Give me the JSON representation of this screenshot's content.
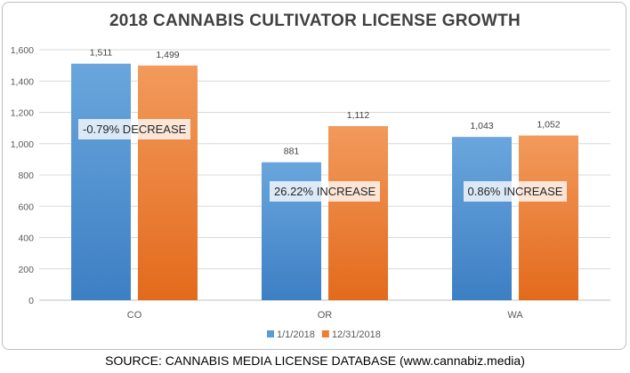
{
  "chart_data": {
    "type": "bar",
    "title": "2018 CANNABIS CULTIVATOR LICENSE GROWTH",
    "categories": [
      "CO",
      "OR",
      "WA"
    ],
    "series": [
      {
        "name": "1/1/2018",
        "values": [
          1511,
          881,
          1043
        ],
        "color": "#5b9bd5"
      },
      {
        "name": "12/31/2018",
        "values": [
          1499,
          1112,
          1052
        ],
        "color": "#ed7d31"
      }
    ],
    "data_labels": [
      [
        "1,511",
        "881",
        "1,043"
      ],
      [
        "1,499",
        "1,112",
        "1,052"
      ]
    ],
    "yticks": [
      "0",
      "200",
      "400",
      "600",
      "800",
      "1,000",
      "1,200",
      "1,400",
      "1,600"
    ],
    "ylim": [
      0,
      1600
    ],
    "grid": true,
    "legend_position": "bottom",
    "annotations": [
      "-0.79% DECREASE",
      "26.22% INCREASE",
      "0.86% INCREASE"
    ]
  },
  "source": "SOURCE: CANNABIS MEDIA LICENSE DATABASE (www.cannabiz.media)"
}
